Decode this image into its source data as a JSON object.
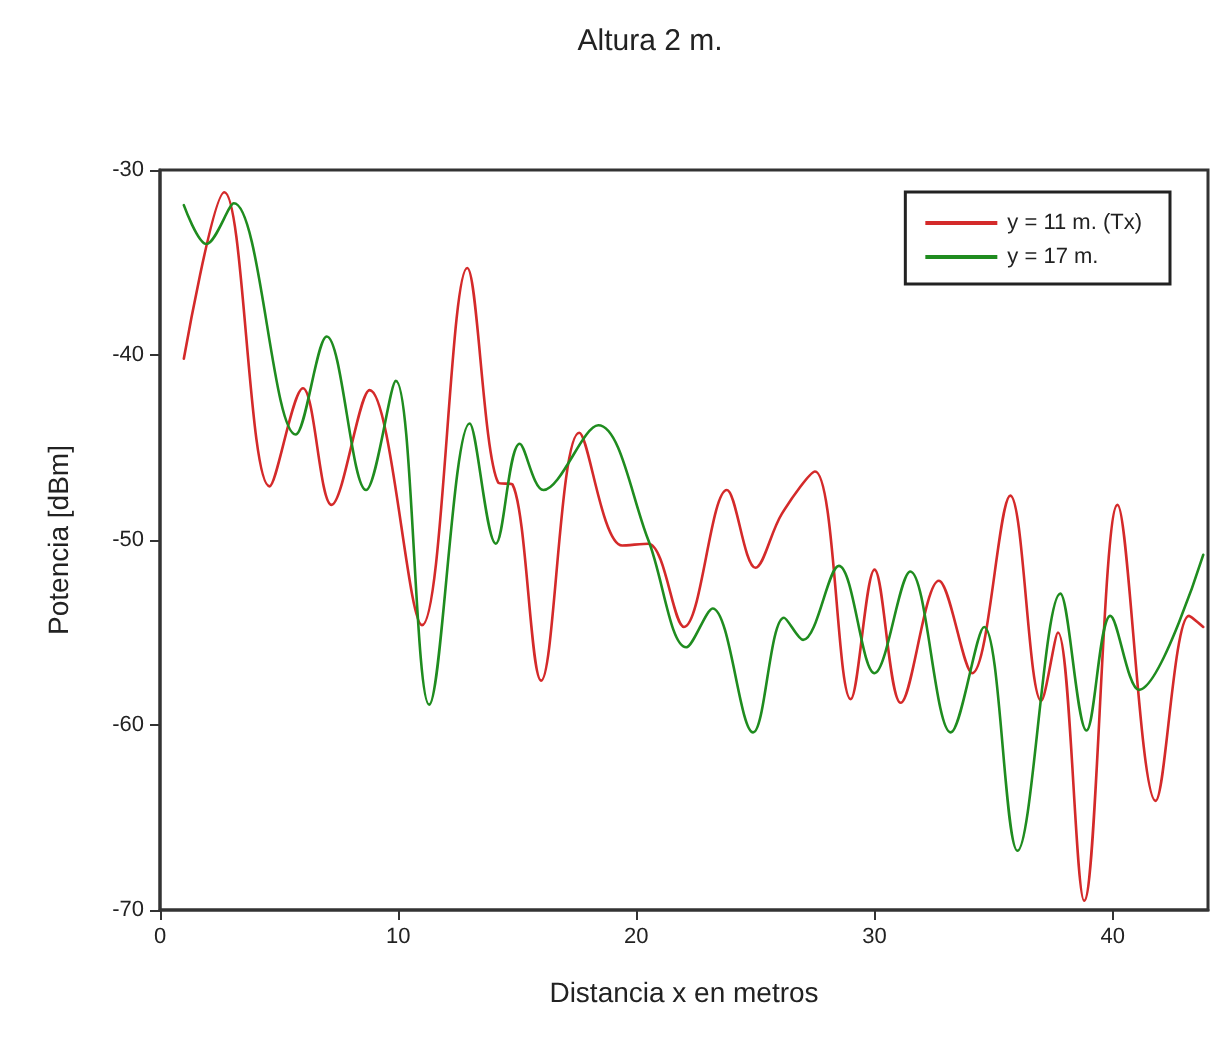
{
  "chart_data": {
    "type": "line",
    "title": "Altura 2 m.",
    "xlabel": "Distancia x en metros",
    "ylabel": "Potencia [dBm]",
    "xlim": [
      0,
      44
    ],
    "xticks": [
      0,
      10,
      20,
      30,
      40
    ],
    "ylim": [
      -70,
      -30
    ],
    "yticks": [
      -70,
      -60,
      -50,
      -40,
      -30
    ],
    "grid": false,
    "legend": "top right",
    "marker": "none",
    "line_style": "solid",
    "series": [
      {
        "name": "y = 11 m. (Tx)",
        "color": "#d42a2a",
        "x": [
          1.0,
          2.7,
          4.6,
          6.0,
          7.2,
          8.8,
          11.0,
          12.9,
          14.2,
          14.8,
          16.0,
          17.6,
          19.4,
          20.5,
          22.0,
          23.8,
          25.0,
          26.1,
          27.5,
          29.0,
          30.0,
          31.1,
          32.7,
          34.1,
          35.7,
          37.0,
          37.7,
          38.8,
          40.2,
          41.8,
          43.2,
          43.8
        ],
        "values": [
          -40.2,
          -31.2,
          -47.1,
          -41.8,
          -48.1,
          -41.9,
          -54.6,
          -35.3,
          -46.9,
          -47.0,
          -57.6,
          -44.2,
          -50.3,
          -50.2,
          -54.7,
          -47.3,
          -51.5,
          -48.6,
          -46.3,
          -58.6,
          -51.6,
          -58.8,
          -52.2,
          -57.2,
          -47.6,
          -58.7,
          -55.0,
          -69.5,
          -48.1,
          -64.1,
          -54.1,
          -54.7
        ]
      },
      {
        "name": "y = 17 m.",
        "color": "#1f8c1f",
        "x": [
          1.0,
          1.95,
          3.1,
          5.7,
          7.0,
          8.65,
          9.9,
          11.3,
          13.0,
          14.1,
          15.1,
          16.1,
          18.4,
          20.5,
          22.1,
          23.2,
          24.9,
          26.2,
          27.0,
          28.5,
          30.0,
          31.5,
          33.2,
          34.6,
          36.0,
          37.8,
          38.9,
          39.9,
          41.1,
          43.8
        ],
        "values": [
          -31.9,
          -34.0,
          -31.8,
          -44.3,
          -39.0,
          -47.3,
          -41.4,
          -58.9,
          -43.7,
          -50.2,
          -44.8,
          -47.3,
          -43.8,
          -50.0,
          -55.8,
          -53.7,
          -60.4,
          -54.2,
          -55.4,
          -51.4,
          -57.2,
          -51.7,
          -60.4,
          -54.7,
          -66.8,
          -52.9,
          -60.3,
          -54.1,
          -58.1,
          -50.8
        ]
      }
    ]
  }
}
